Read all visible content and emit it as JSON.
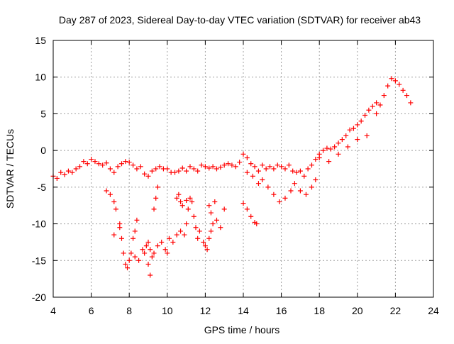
{
  "chart_data": {
    "type": "scatter",
    "title": "Day 287 of 2023, Sidereal Day-to-day VTEC variation (SDTVAR) for receiver ab43",
    "xlabel": "GPS time / hours",
    "ylabel": "SDTVAR / TECUs",
    "xlim": [
      4,
      24
    ],
    "ylim": [
      -20,
      15
    ],
    "xticks": [
      "4",
      "6",
      "8",
      "10",
      "12",
      "14",
      "16",
      "18",
      "20",
      "22",
      "24"
    ],
    "yticks": [
      "15",
      "10",
      "5",
      "0",
      "-5",
      "-10",
      "-15",
      "-20"
    ],
    "grid": true,
    "marker": "+",
    "series": [
      {
        "name": "SDTVAR",
        "color": "#ff0000",
        "x": [
          4.0,
          4.2,
          4.4,
          4.6,
          4.8,
          5.0,
          5.2,
          5.4,
          5.6,
          5.8,
          6.0,
          6.2,
          6.4,
          6.6,
          6.8,
          7.0,
          7.2,
          7.4,
          7.6,
          7.8,
          8.0,
          8.2,
          8.4,
          8.6,
          8.8,
          9.0,
          9.2,
          9.4,
          9.6,
          9.8,
          10.0,
          10.2,
          10.4,
          10.6,
          10.8,
          11.0,
          11.2,
          11.4,
          11.6,
          11.8,
          12.0,
          12.2,
          12.4,
          12.6,
          12.8,
          13.0,
          13.2,
          13.4,
          13.6,
          13.8,
          14.0,
          14.2,
          14.4,
          14.6,
          14.8,
          15.0,
          15.2,
          15.4,
          15.6,
          15.8,
          16.0,
          16.2,
          16.4,
          16.6,
          16.8,
          17.0,
          17.2,
          17.4,
          17.6,
          17.8,
          18.0,
          18.2,
          18.4,
          18.6,
          18.8,
          19.0,
          19.2,
          19.4,
          19.6,
          19.8,
          20.0,
          20.2,
          20.4,
          20.6,
          20.8,
          21.0,
          21.2,
          21.4,
          21.6,
          21.8,
          22.0,
          22.2,
          22.4,
          22.6,
          22.8,
          6.8,
          7.0,
          7.2,
          7.3,
          7.5,
          7.6,
          7.7,
          7.8,
          7.9,
          8.0,
          8.1,
          8.3,
          8.5,
          8.7,
          8.8,
          8.9,
          9.0,
          9.1,
          9.3,
          9.5,
          9.7,
          9.9,
          10.0,
          10.1,
          10.3,
          10.5,
          10.7,
          10.9,
          11.0,
          11.1,
          11.2,
          11.3,
          11.4,
          11.5,
          11.6,
          11.7,
          11.9,
          12.0,
          12.1,
          12.2,
          12.3,
          12.4,
          12.6,
          12.8,
          13.0,
          14.0,
          14.2,
          14.4,
          14.6,
          14.7,
          9.0,
          9.1,
          9.2,
          9.3,
          9.4,
          9.5,
          8.2,
          8.3,
          8.4,
          7.5,
          7.2,
          10.5,
          10.6,
          10.7,
          10.8,
          11.0,
          12.2,
          12.3,
          12.5,
          16.7,
          17.0,
          17.3,
          17.6,
          17.8,
          18.0,
          18.5,
          19.0,
          19.5,
          20.0,
          20.5,
          21.0,
          15.0,
          15.3,
          15.6,
          15.9,
          16.2,
          16.5,
          14.2,
          14.5,
          14.8
        ],
        "y": [
          -3.5,
          -3.8,
          -3.0,
          -3.3,
          -2.8,
          -3.0,
          -2.5,
          -2.2,
          -1.5,
          -1.8,
          -1.2,
          -1.5,
          -1.8,
          -2.0,
          -1.7,
          -2.5,
          -3.0,
          -2.2,
          -1.8,
          -1.5,
          -1.6,
          -2.0,
          -2.5,
          -2.2,
          -3.2,
          -3.5,
          -2.8,
          -2.5,
          -2.2,
          -2.5,
          -2.5,
          -3.0,
          -3.0,
          -2.8,
          -2.4,
          -2.8,
          -2.2,
          -2.5,
          -2.8,
          -2.0,
          -2.2,
          -2.4,
          -2.2,
          -2.5,
          -2.3,
          -2.0,
          -1.8,
          -2.0,
          -2.2,
          -1.6,
          -0.5,
          -1.0,
          -1.8,
          -2.2,
          -2.8,
          -2.0,
          -2.5,
          -2.2,
          -2.5,
          -2.0,
          -2.2,
          -2.5,
          -2.0,
          -2.8,
          -3.0,
          -2.8,
          -3.5,
          -2.5,
          -2.0,
          -1.2,
          -0.5,
          0.0,
          0.3,
          0.2,
          0.5,
          1.0,
          1.5,
          2.0,
          2.8,
          3.0,
          3.5,
          4.0,
          4.8,
          5.5,
          6.0,
          6.5,
          6.2,
          7.5,
          8.8,
          9.8,
          9.5,
          9.0,
          8.2,
          7.5,
          6.5,
          -5.5,
          -6.0,
          -7.0,
          -8.0,
          -10.0,
          -12.0,
          -14.0,
          -15.5,
          -16.0,
          -15.0,
          -14.0,
          -14.5,
          -15.0,
          -13.5,
          -14.0,
          -13.0,
          -12.5,
          -13.5,
          -14.0,
          -13.0,
          -12.5,
          -13.5,
          -14.0,
          -12.0,
          -12.5,
          -11.5,
          -11.0,
          -11.5,
          -10.0,
          -8.0,
          -6.5,
          -7.0,
          -9.0,
          -10.5,
          -12.0,
          -11.0,
          -12.5,
          -13.0,
          -13.5,
          -12.0,
          -11.0,
          -10.0,
          -9.5,
          -10.5,
          -8.0,
          -7.2,
          -8.0,
          -9.0,
          -9.8,
          -10.0,
          -15.5,
          -17.0,
          -14.5,
          -8.0,
          -6.5,
          -5.0,
          -12.0,
          -11.0,
          -9.5,
          -10.5,
          -11.5,
          -6.5,
          -6.0,
          -7.0,
          -7.5,
          -6.8,
          -7.5,
          -8.5,
          -7.0,
          -4.5,
          -5.5,
          -6.0,
          -5.0,
          -4.0,
          -1.0,
          -1.5,
          -0.5,
          0.5,
          1.5,
          2.0,
          5.0,
          -4.0,
          -5.0,
          -6.0,
          -7.0,
          -6.5,
          -5.5,
          -3.0,
          -3.5,
          -4.5
        ]
      }
    ]
  }
}
